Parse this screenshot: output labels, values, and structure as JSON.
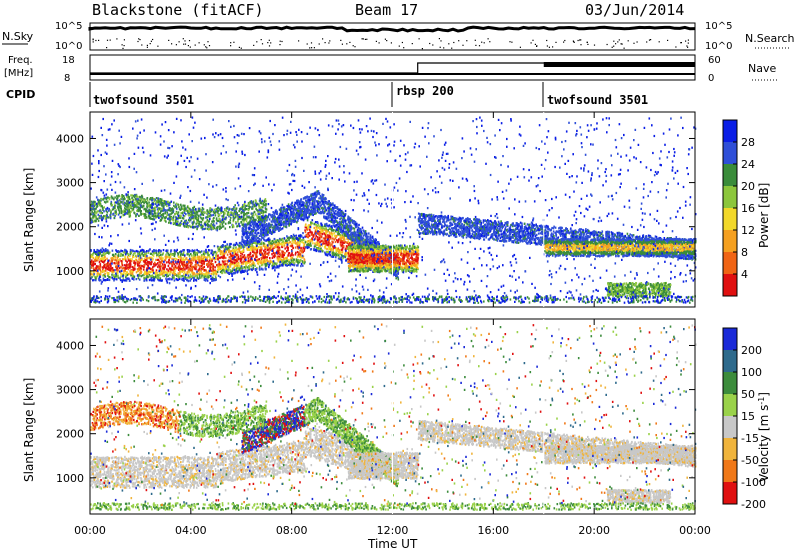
{
  "header": {
    "title": "Blackstone (fitACF)",
    "beam": "Beam 17",
    "date": "03/Jun/2014"
  },
  "top_panels": {
    "nsky_label": "N.Sky",
    "nsky_ticks": [
      "10^5",
      "10^0"
    ],
    "nsearch_label": "N.Search",
    "freq_label_line1": "Freq.",
    "freq_label_line2": "[MHz]",
    "freq_ticks": [
      "18",
      "8"
    ],
    "nave_ticks": [
      "60",
      "0"
    ],
    "nave_label": "Nave",
    "cpid_label": "CPID",
    "cpid_segments": [
      {
        "name": "twofsound 3501",
        "start_hour": 0
      },
      {
        "name": "rbsp 200",
        "start_hour": 12.0
      },
      {
        "name": "twofsound 3501",
        "start_hour": 18.0
      }
    ],
    "nave_step_hour": 13.0,
    "freq_band_change_hour": 18.0
  },
  "chart_data": [
    {
      "type": "heatmap",
      "name": "Power",
      "ylabel": "Slant Range [km]",
      "xlim": [
        0,
        24
      ],
      "ylim": [
        180,
        4600
      ],
      "yticks": [
        1000,
        2000,
        3000,
        4000
      ],
      "colorbar": {
        "label": "Power [dB]",
        "ticks": [
          "28",
          "24",
          "20",
          "16",
          "12",
          "8",
          "4"
        ],
        "colors": [
          "#0a1ee6",
          "#2f4fd8",
          "#3a8c3a",
          "#8cc63c",
          "#f2d82a",
          "#f5a020",
          "#f06414",
          "#e01010"
        ]
      }
    },
    {
      "type": "heatmap",
      "name": "Velocity",
      "ylabel": "Slant Range [km]",
      "xlabel": "Time UT",
      "xlim": [
        0,
        24
      ],
      "ylim": [
        180,
        4600
      ],
      "yticks": [
        1000,
        2000,
        3000,
        4000
      ],
      "xticks": [
        "00:00",
        "04:00",
        "08:00",
        "12:00",
        "16:00",
        "20:00",
        "00:00"
      ],
      "colorbar": {
        "label_main": "Velocity [m s",
        "label_sup": "-1",
        "label_end": "]",
        "ticks": [
          "200",
          "100",
          "50",
          "15",
          "-15",
          "-50",
          "-100",
          "-200"
        ],
        "colors": [
          "#1a2ad8",
          "#2e6a8c",
          "#3c8c3c",
          "#9ad24a",
          "#c8c8c8",
          "#f0b43c",
          "#f07818",
          "#e01010"
        ]
      }
    }
  ]
}
